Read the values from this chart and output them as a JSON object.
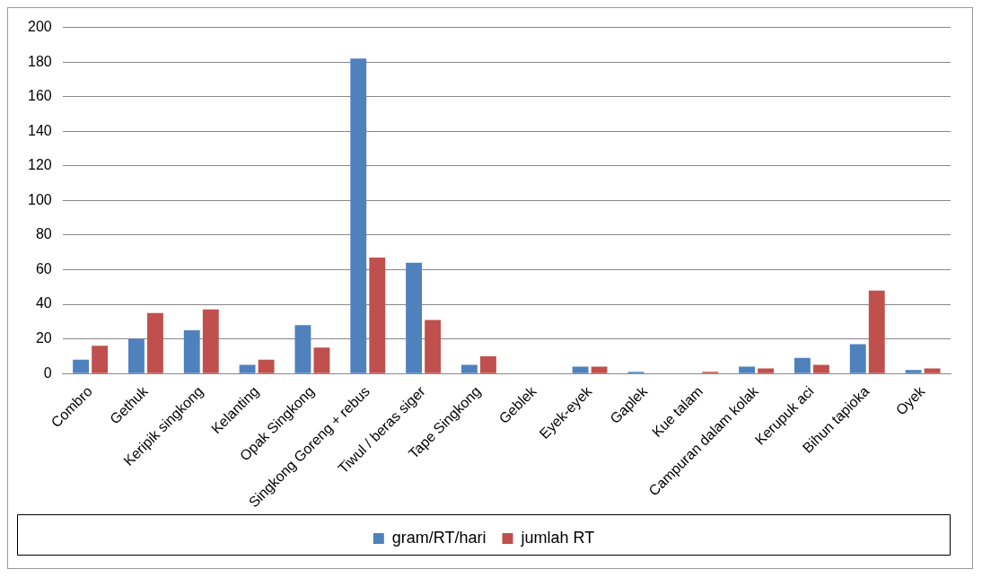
{
  "chart_data": {
    "type": "bar",
    "categories": [
      "Combro",
      "Gethuk",
      "Keripik singkong",
      "Kelanting",
      "Opak Singkong",
      "Singkong Goreng + rebus",
      "Tiwul / beras siger",
      "Tape Singkong",
      "Geblek",
      "Eyek-eyek",
      "Gaplek",
      "Kue talam",
      "Campuran dalam kolak",
      "Kerupuk aci",
      "Bihun tapioka",
      "Oyek"
    ],
    "series": [
      {
        "name": "gram/RT/hari",
        "color": "#4f81bd",
        "values": [
          8,
          20,
          25,
          5,
          28,
          182,
          64,
          5,
          0,
          4,
          1,
          0,
          4,
          9,
          17,
          2
        ]
      },
      {
        "name": "jumlah RT",
        "color": "#c0504d",
        "values": [
          16,
          35,
          37,
          8,
          15,
          67,
          31,
          10,
          0,
          4,
          0,
          1,
          3,
          5,
          48,
          3
        ]
      }
    ],
    "ylim": [
      0,
      200
    ],
    "yticks": [
      0,
      20,
      40,
      60,
      80,
      100,
      120,
      140,
      160,
      180,
      200
    ],
    "grid": "y",
    "legend": "bottom"
  }
}
